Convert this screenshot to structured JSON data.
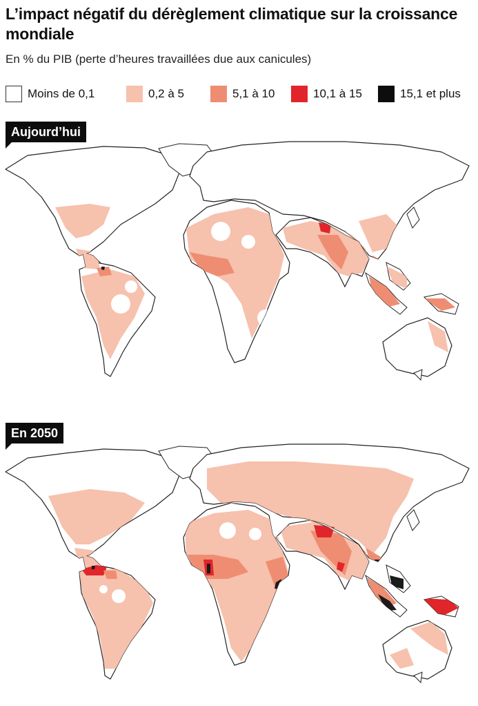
{
  "title": "L’impact négatif du dérèglement climatique sur la croissance mondiale",
  "subtitle": "En % du PIB (perte d’heures travaillées due aux canicules)",
  "legend": [
    {
      "label": "Moins de 0,1",
      "color": "#ffffff"
    },
    {
      "label": "0,2 à 5",
      "color": "#f6c1ad"
    },
    {
      "label": "5,1 à 10",
      "color": "#ef8d72"
    },
    {
      "label": "10,1 à 15",
      "color": "#e1262b"
    },
    {
      "label": "15,1 et plus",
      "color": "#0d0d0d"
    }
  ],
  "maps": [
    {
      "label": "Aujourd’hui"
    },
    {
      "label": "En 2050"
    }
  ]
}
